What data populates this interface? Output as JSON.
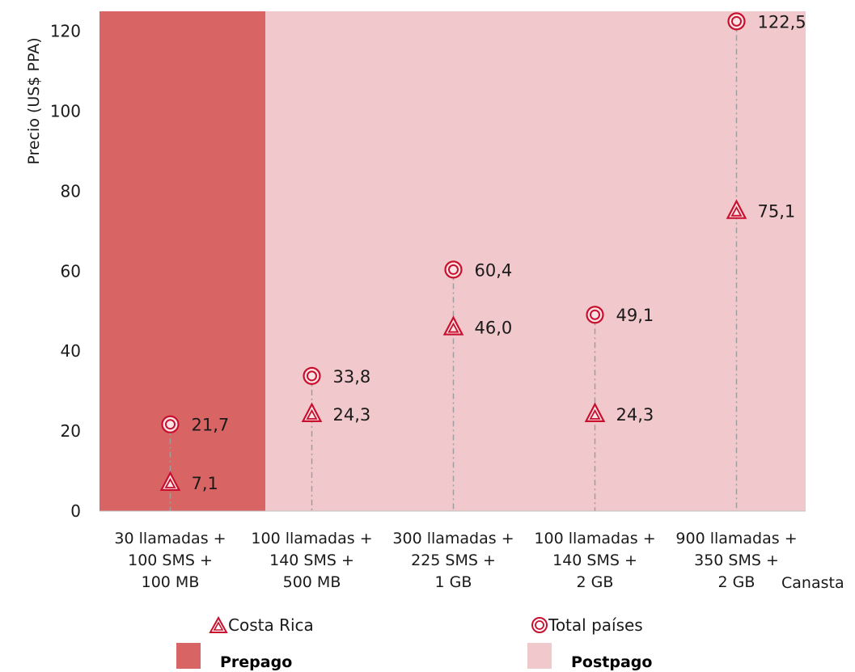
{
  "chart_data": {
    "type": "scatter",
    "ylabel": "Precio (US$ PPA)",
    "xlabel": "Canasta",
    "ylim": [
      0,
      125
    ],
    "yticks": [
      0,
      20,
      40,
      60,
      80,
      100,
      120
    ],
    "categories": [
      [
        "30 llamadas +",
        "100 SMS +",
        "100 MB"
      ],
      [
        "100 llamadas +",
        "140 SMS +",
        "500 MB"
      ],
      [
        "300 llamadas +",
        "225 SMS +",
        "1 GB"
      ],
      [
        "100 llamadas +",
        "140 SMS +",
        "2 GB"
      ],
      [
        "900 llamadas +",
        "350 SMS +",
        "2 GB"
      ]
    ],
    "series": [
      {
        "name": "Costa Rica",
        "marker": "triangle",
        "values": [
          7.1,
          24.3,
          46.0,
          24.3,
          75.1
        ],
        "labels": [
          "7,1",
          "24,3",
          "46,0",
          "24,3",
          "75,1"
        ]
      },
      {
        "name": "Total países",
        "marker": "circle",
        "values": [
          21.7,
          33.8,
          60.4,
          49.1,
          122.5
        ],
        "labels": [
          "21,7",
          "33,8",
          "60,4",
          "49,1",
          "122,5"
        ]
      }
    ],
    "bands": [
      {
        "name": "Prepago",
        "categories": [
          0
        ],
        "color": "#d96464"
      },
      {
        "name": "Postpago",
        "categories": [
          1,
          2,
          3,
          4
        ],
        "color": "#f1c8cb"
      }
    ],
    "marker_color": "#c8102e",
    "grid": false,
    "legend_position": "bottom"
  }
}
